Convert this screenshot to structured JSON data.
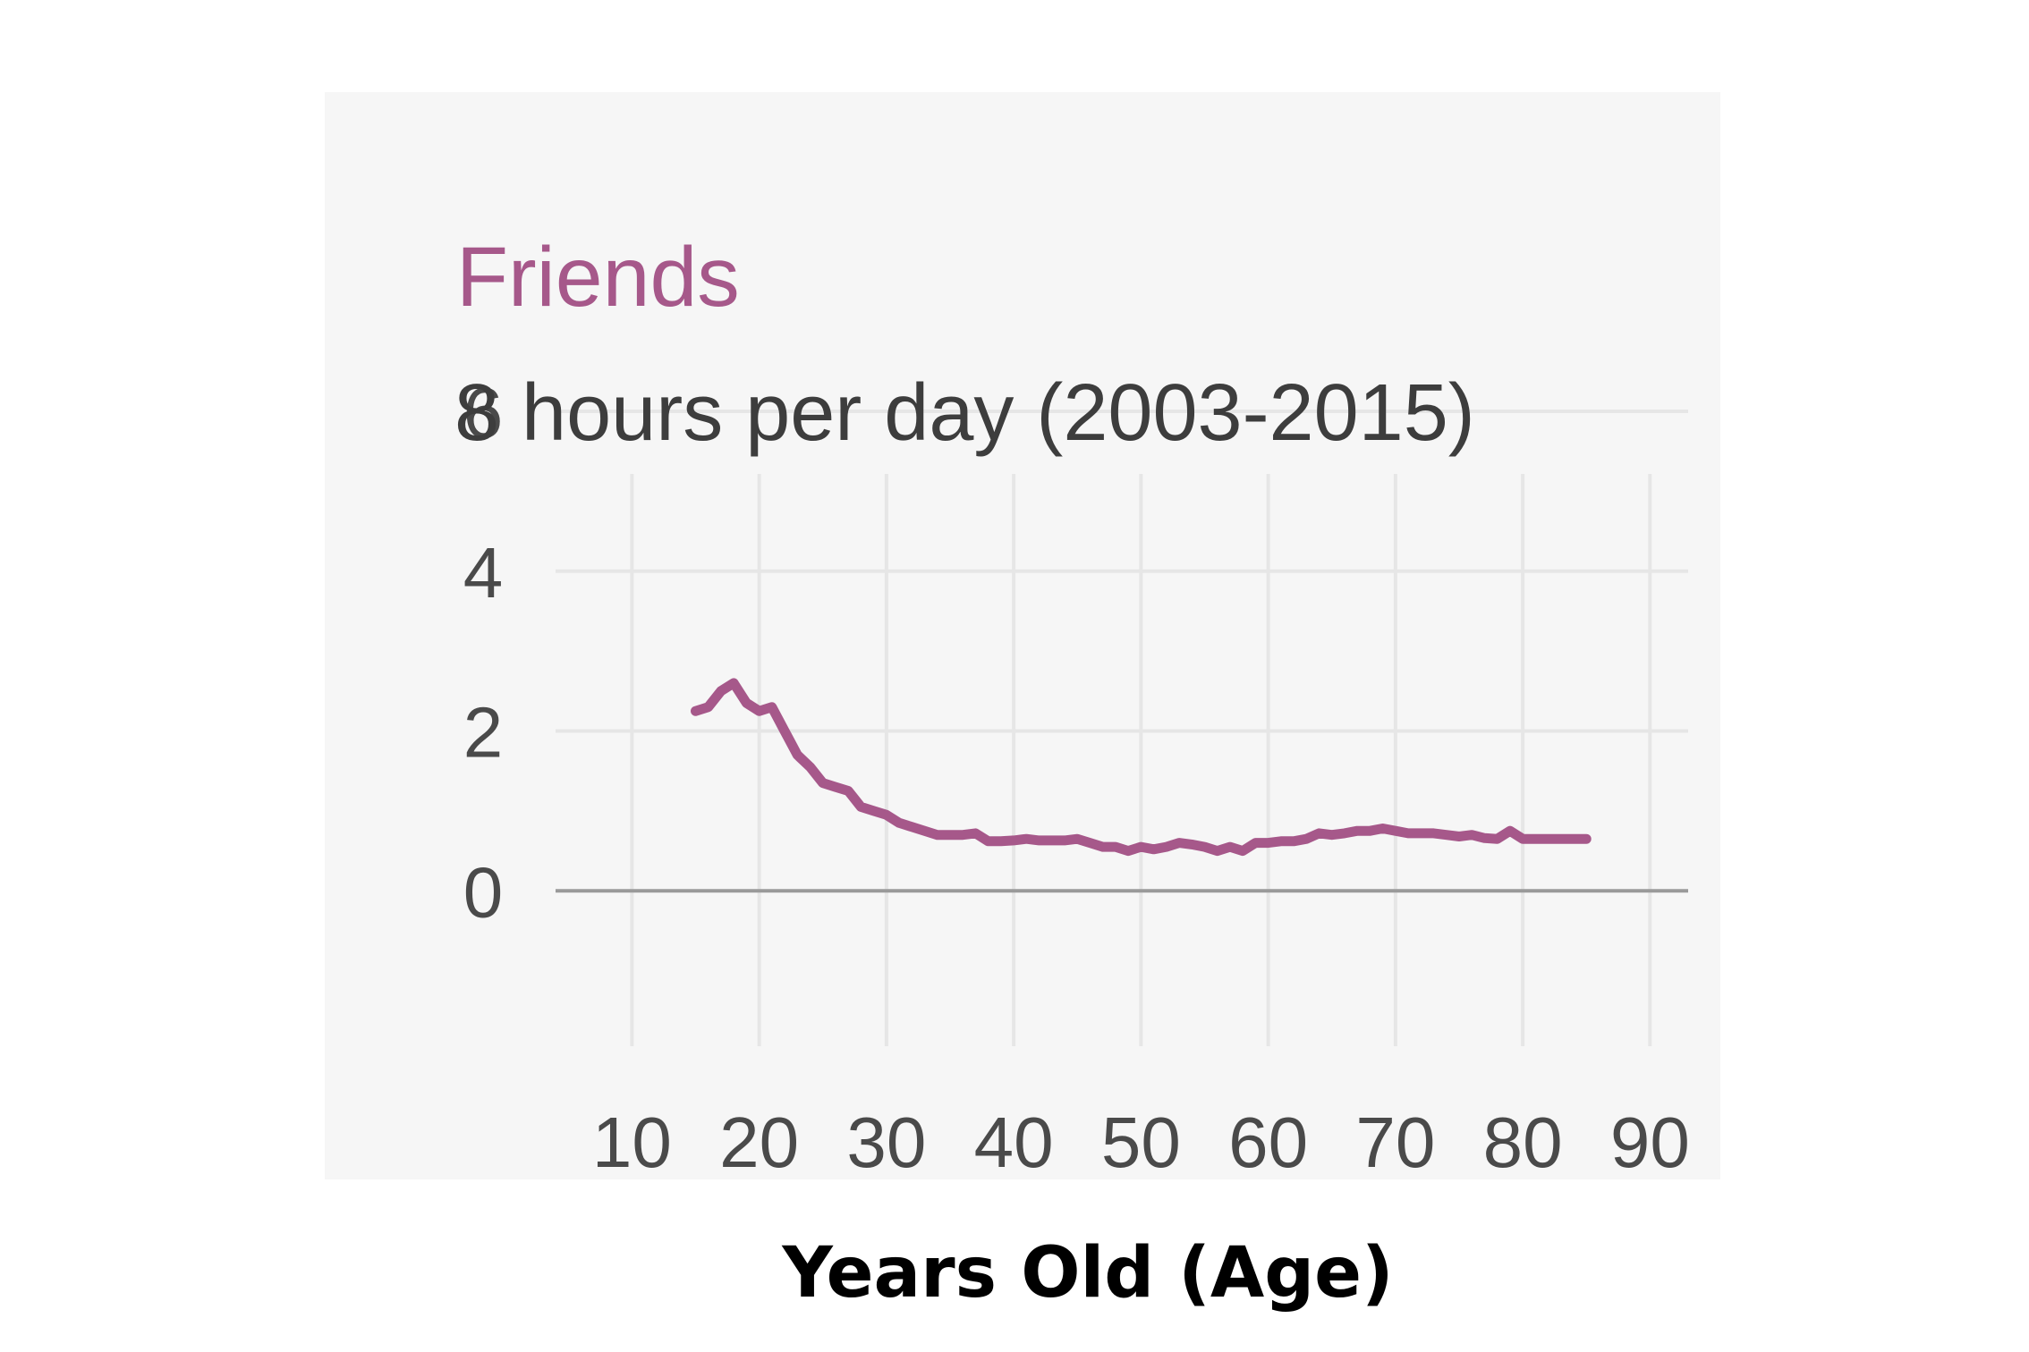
{
  "chart_data": {
    "type": "line",
    "title": "Friends",
    "subtitle": "8 hours per day (2003-2015)",
    "xlabel": "Years Old (Age)",
    "ylabel": "",
    "xlim": [
      4,
      93
    ],
    "ylim": [
      -2,
      6
    ],
    "x_ticks": [
      10,
      20,
      30,
      40,
      50,
      60,
      70,
      80,
      90
    ],
    "y_ticks": [
      0,
      2,
      4,
      6
    ],
    "grid": true,
    "series": [
      {
        "color": "#a6588a",
        "x": [
          15,
          16,
          17,
          18,
          19,
          20,
          21,
          22,
          23,
          24,
          25,
          26,
          27,
          28,
          29,
          30,
          31,
          32,
          33,
          34,
          35,
          36,
          37,
          38,
          39,
          40,
          41,
          42,
          43,
          44,
          45,
          46,
          47,
          48,
          49,
          50,
          51,
          52,
          53,
          54,
          55,
          56,
          57,
          58,
          59,
          60,
          61,
          62,
          63,
          64,
          65,
          66,
          67,
          68,
          69,
          70,
          71,
          72,
          73,
          74,
          75,
          76,
          77,
          78,
          79,
          80,
          81,
          82,
          83,
          84,
          85
        ],
        "y": [
          2.25,
          2.3,
          2.5,
          2.6,
          2.35,
          2.25,
          2.3,
          2.0,
          1.7,
          1.55,
          1.35,
          1.3,
          1.25,
          1.05,
          1.0,
          0.95,
          0.85,
          0.8,
          0.75,
          0.7,
          0.7,
          0.7,
          0.72,
          0.62,
          0.62,
          0.63,
          0.65,
          0.63,
          0.63,
          0.63,
          0.65,
          0.6,
          0.55,
          0.55,
          0.5,
          0.55,
          0.52,
          0.55,
          0.6,
          0.58,
          0.55,
          0.5,
          0.55,
          0.5,
          0.6,
          0.6,
          0.62,
          0.62,
          0.65,
          0.72,
          0.7,
          0.72,
          0.75,
          0.75,
          0.78,
          0.75,
          0.72,
          0.72,
          0.72,
          0.7,
          0.68,
          0.7,
          0.66,
          0.65,
          0.75,
          0.65,
          0.65,
          0.65,
          0.65,
          0.65,
          0.65
        ]
      }
    ]
  }
}
